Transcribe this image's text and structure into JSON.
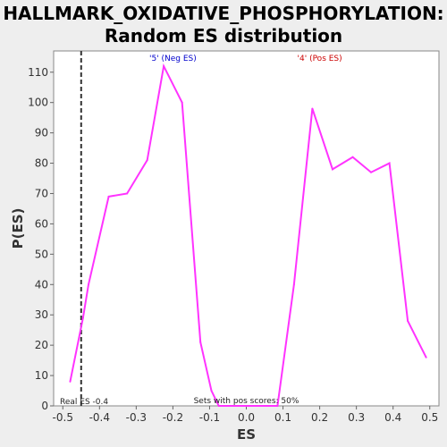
{
  "chart_data": {
    "type": "line",
    "title_line1": "HALLMARK_OXIDATIVE_PHOSPHORYLATION:",
    "title_line2": "Random ES distribution",
    "xlabel": "ES",
    "ylabel": "P(ES)",
    "xlim": [
      -0.525,
      0.525
    ],
    "ylim": [
      0,
      117
    ],
    "xticks": [
      -0.5,
      -0.4,
      -0.3,
      -0.2,
      -0.1,
      0.0,
      0.1,
      0.2,
      0.3,
      0.4,
      0.5
    ],
    "xtick_labels": [
      "-0.5",
      "-0.4",
      "-0.3",
      "-0.2",
      "-0.1",
      "0.0",
      "0.1",
      "0.2",
      "0.3",
      "0.4",
      "0.5"
    ],
    "yticks": [
      0,
      10,
      20,
      30,
      40,
      50,
      60,
      70,
      80,
      90,
      100,
      110
    ],
    "series": [
      {
        "color": "#ff33ff",
        "x": [
          -0.48,
          -0.445,
          -0.43,
          -0.375,
          -0.325,
          -0.27,
          -0.225,
          -0.175,
          -0.125,
          -0.095,
          -0.075,
          0.0,
          0.085,
          0.13,
          0.18,
          0.235,
          0.29,
          0.34,
          0.39,
          0.44,
          0.49
        ],
        "y": [
          8,
          29,
          40,
          69,
          70,
          81,
          112,
          100,
          21,
          5,
          0,
          0,
          0,
          40,
          98,
          78,
          82,
          77,
          80,
          28,
          16
        ]
      }
    ],
    "real_es": -0.45,
    "real_es_label": "Real ES -0.4",
    "neg_label": "'5' (Neg ES)",
    "neg_color": "#0000cc",
    "pos_label": "'4' (Pos ES)",
    "pos_color": "#cc0000",
    "pos_scores_label": "Sets with pos scores: 50%",
    "grid": false
  }
}
